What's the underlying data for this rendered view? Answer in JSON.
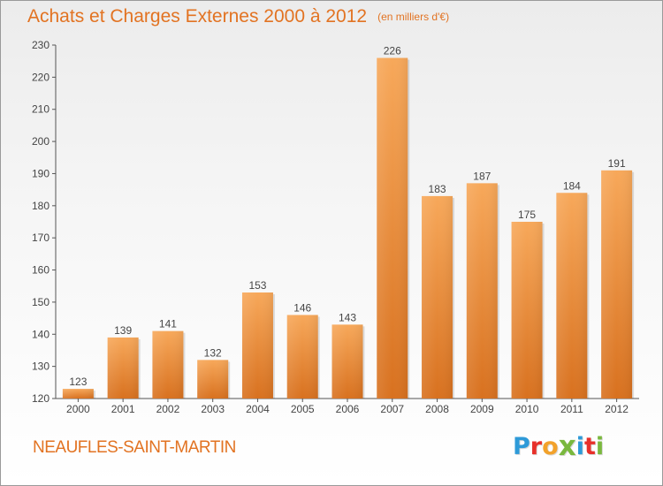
{
  "chart": {
    "title": "Achats et Charges Externes 2000 à 2012",
    "subtitle": "(en milliers d'€)"
  },
  "footer": {
    "commune": "NEAUFLES-SAINT-MARTIN",
    "logo_letters": [
      "P",
      "r",
      "o",
      "x",
      "i",
      "t",
      "i"
    ],
    "logo_colors": [
      "#2e9ad8",
      "#e7302a",
      "#f2a22b",
      "#7ab83e",
      "#2e9ad8",
      "#e7302a",
      "#7ab83e"
    ]
  },
  "colors": {
    "bar_light": "#f7a85a",
    "bar_dark": "#d8711f",
    "title": "#e27322",
    "axis": "#555555"
  },
  "chart_data": {
    "type": "bar",
    "categories": [
      "2000",
      "2001",
      "2002",
      "2003",
      "2004",
      "2005",
      "2006",
      "2007",
      "2008",
      "2009",
      "2010",
      "2011",
      "2012"
    ],
    "values": [
      123,
      139,
      141,
      132,
      153,
      146,
      143,
      226,
      183,
      187,
      175,
      184,
      191
    ],
    "title": "Achats et Charges Externes 2000 à 2012",
    "subtitle": "(en milliers d'€)",
    "xlabel": "",
    "ylabel": "",
    "ylim": [
      120,
      230
    ],
    "yticks": [
      120,
      130,
      140,
      150,
      160,
      170,
      180,
      190,
      200,
      210,
      220,
      230
    ],
    "grid": false,
    "show_value_labels": true
  }
}
